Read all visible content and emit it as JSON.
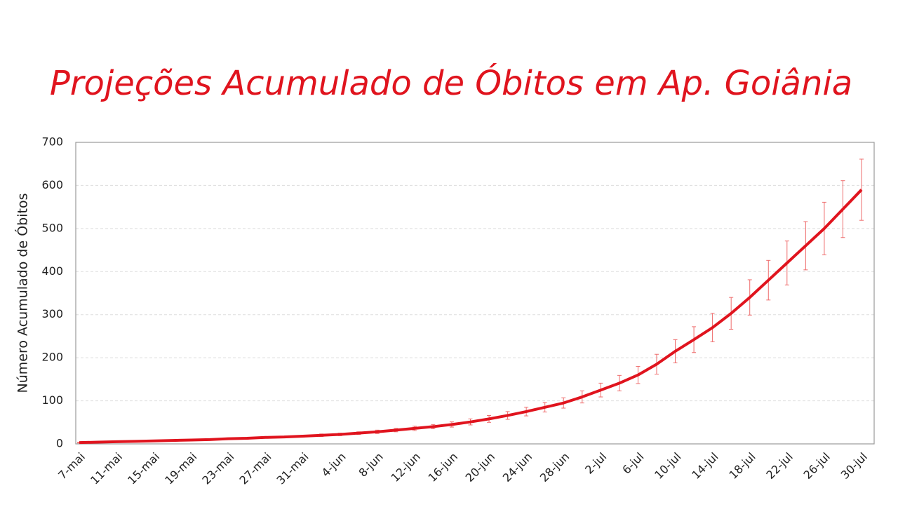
{
  "chart_data": {
    "type": "line",
    "title": "Projeções Acumulado de Óbitos em Ap. Goiânia",
    "ylabel": "Número Acumulado de Óbitos",
    "categories": [
      "7-mai",
      null,
      "11-mai",
      null,
      "15-mai",
      null,
      "19-mai",
      null,
      "23-mai",
      null,
      "27-mai",
      null,
      "31-mai",
      null,
      "4-jun",
      null,
      "8-jun",
      null,
      "12-jun",
      null,
      "16-jun",
      null,
      "20-jun",
      null,
      "24-jun",
      null,
      "28-jun",
      null,
      "2-jul",
      null,
      "6-jul",
      null,
      "10-jul",
      null,
      "14-jul",
      null,
      "18-jul",
      null,
      "22-jul",
      null,
      "26-jul",
      null,
      "30-jul"
    ],
    "values": [
      3,
      4,
      5,
      6,
      7,
      8,
      9,
      10,
      12,
      13,
      15,
      16,
      18,
      20,
      22,
      25,
      28,
      32,
      36,
      40,
      45,
      51,
      58,
      66,
      75,
      85,
      95,
      109,
      125,
      141,
      160,
      185,
      215,
      242,
      270,
      303,
      340,
      380,
      420,
      460,
      500,
      545,
      590
    ],
    "errors": [
      1,
      1,
      1,
      1,
      1,
      1,
      1,
      1,
      2,
      2,
      2,
      2,
      2,
      3,
      3,
      3,
      4,
      4,
      5,
      5,
      6,
      7,
      8,
      9,
      10,
      11,
      12,
      14,
      16,
      18,
      20,
      23,
      27,
      30,
      33,
      37,
      41,
      46,
      51,
      56,
      61,
      66,
      71
    ],
    "color": "#e0141e",
    "error_color": "#ee6b6b",
    "ylim": [
      0,
      700
    ],
    "yticks": [
      0,
      100,
      200,
      300,
      400,
      500,
      600,
      700
    ],
    "grid": true
  }
}
